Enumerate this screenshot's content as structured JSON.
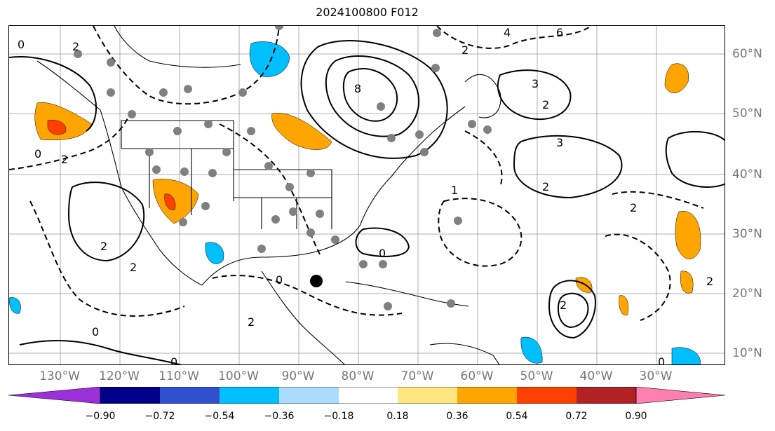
{
  "title": "2024100800 F012",
  "longitude_labels": [
    "130°W",
    "120°W",
    "110°W",
    "100°W",
    "90°W",
    "80°W",
    "70°W",
    "60°W",
    "50°W",
    "40°W",
    "30°W"
  ],
  "latitude_labels": [
    "60°N",
    "50°N",
    "40°N",
    "30°N",
    "20°N",
    "10°N"
  ],
  "colorbar": {
    "ticks": [
      "−0.90",
      "−0.72",
      "−0.54",
      "−0.36",
      "−0.18",
      "0.18",
      "0.36",
      "0.54",
      "0.72",
      "0.90"
    ],
    "colors": [
      "#9b30d9",
      "#00008b",
      "#3050d0",
      "#00bfff",
      "#aadcff",
      "#ffffff",
      "#ffe680",
      "#ffa500",
      "#ff4000",
      "#b22222",
      "#ff80b0"
    ]
  },
  "contour_labels": [
    "0",
    "1",
    "2",
    "4",
    "6",
    "8",
    "3",
    "-2"
  ],
  "colors": {
    "land_outline": "#000000",
    "grid": "#999999",
    "station_dots": "#808080",
    "marker": "#000000"
  }
}
